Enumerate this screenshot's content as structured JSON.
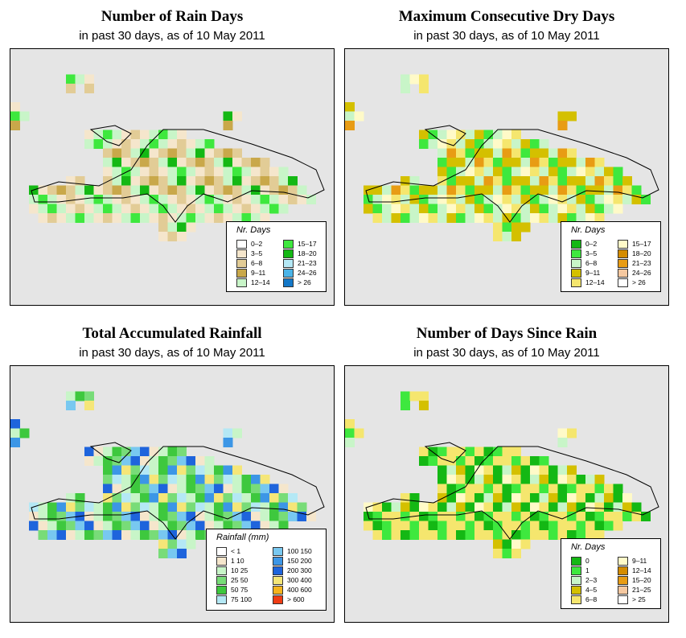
{
  "panels": [
    {
      "title": "Number of Rain Days",
      "subtitle": "in past 30 days, as of  10 May 2011",
      "legend_title": "Nr. Days",
      "legend": [
        {
          "label": "0–2",
          "color": "#ffffff"
        },
        {
          "label": "3–5",
          "color": "#f5e6cc"
        },
        {
          "label": "6–8",
          "color": "#e2cc96"
        },
        {
          "label": "9–11",
          "color": "#c9a84a"
        },
        {
          "label": "12–14",
          "color": "#c8f5c8"
        },
        {
          "label": "15–17",
          "color": "#3ee83e"
        },
        {
          "label": "18–20",
          "color": "#14b814"
        },
        {
          "label": "21–23",
          "color": "#b4e8f5"
        },
        {
          "label": "24–26",
          "color": "#4ab4e8"
        },
        {
          "label": "> 26",
          "color": "#1478c8"
        }
      ]
    },
    {
      "title": "Maximum Consecutive Dry Days",
      "subtitle": "in past 30 days, as of  10 May 2011",
      "legend_title": "Nr. Days",
      "legend": [
        {
          "label": "0–2",
          "color": "#14b814"
        },
        {
          "label": "3–5",
          "color": "#3ee83e"
        },
        {
          "label": "6–8",
          "color": "#c8f5c8"
        },
        {
          "label": "9–11",
          "color": "#d4c000"
        },
        {
          "label": "12–14",
          "color": "#f5e66e"
        },
        {
          "label": "15–17",
          "color": "#fffac8"
        },
        {
          "label": "18–20",
          "color": "#d48c00"
        },
        {
          "label": "21–23",
          "color": "#e89c14"
        },
        {
          "label": "24–26",
          "color": "#f5c8a0"
        },
        {
          "label": "> 26",
          "color": "#ffffff"
        }
      ]
    },
    {
      "title": "Total Accumulated Rainfall",
      "subtitle": "in past 30 days, as of  10 May 2011",
      "legend_title": "Rainfall (mm)",
      "legend": [
        {
          "label": "< 1",
          "color": "#ffffff"
        },
        {
          "label": "1     10",
          "color": "#f5e6cc"
        },
        {
          "label": "10    25",
          "color": "#c8f5c8"
        },
        {
          "label": "25    50",
          "color": "#78dc78"
        },
        {
          "label": "50    75",
          "color": "#3ec83e"
        },
        {
          "label": "75   100",
          "color": "#b4e8f5"
        },
        {
          "label": "100  150",
          "color": "#78c8f0"
        },
        {
          "label": "150  200",
          "color": "#3c96e6"
        },
        {
          "label": "200  300",
          "color": "#1e64dc"
        },
        {
          "label": "300  400",
          "color": "#f5e678"
        },
        {
          "label": "400  600",
          "color": "#f5b41e"
        },
        {
          "label": "> 600",
          "color": "#f03c14"
        }
      ]
    },
    {
      "title": "Number of Days Since Rain",
      "subtitle": "in past 30 days, as of  10 May 2011",
      "legend_title": "Nr. Days",
      "legend": [
        {
          "label": "0",
          "color": "#14b814"
        },
        {
          "label": "1",
          "color": "#3ee83e"
        },
        {
          "label": "2–3",
          "color": "#c8f5c8"
        },
        {
          "label": "4–5",
          "color": "#d4c000"
        },
        {
          "label": "6–8",
          "color": "#f5e66e"
        },
        {
          "label": "9–11",
          "color": "#fffac8"
        },
        {
          "label": "12–14",
          "color": "#d48c00"
        },
        {
          "label": "15–20",
          "color": "#e89c14"
        },
        {
          "label": "21–25",
          "color": "#f5c8a0"
        },
        {
          "label": "> 25",
          "color": "#ffffff"
        }
      ]
    }
  ]
}
